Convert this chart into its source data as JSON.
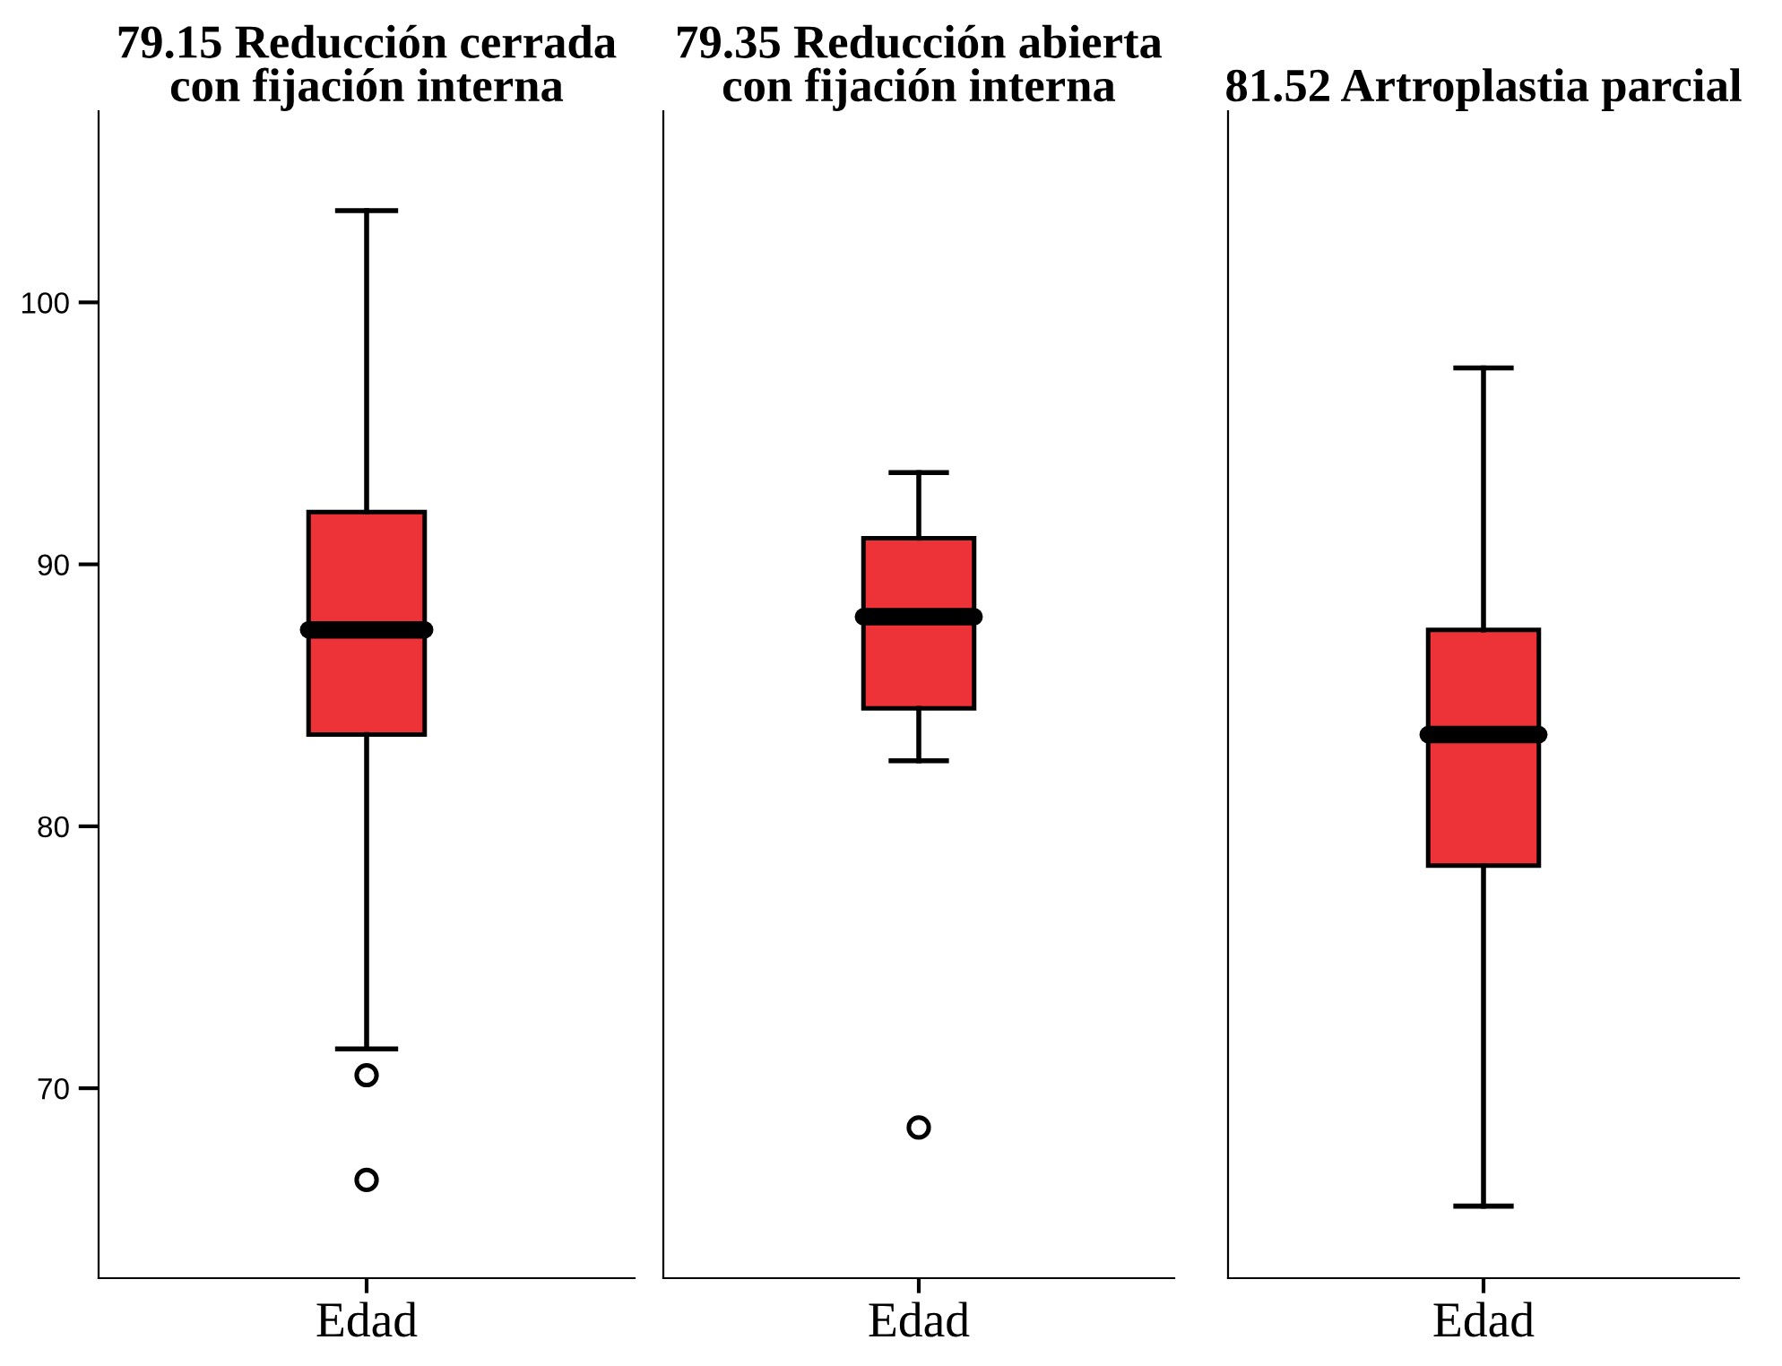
{
  "chart_data": [
    {
      "type": "box",
      "title": "79.15 Reducción cerrada\ncon fijación interna",
      "categories": [
        "Edad"
      ],
      "series": [
        {
          "color": "#ee3338",
          "boxes": [
            {
              "low": 71.5,
              "q1": 83.5,
              "median": 87.5,
              "q3": 92.0,
              "high": 103.5,
              "outliers": [
                70.5,
                66.5
              ]
            }
          ]
        }
      ],
      "ylim": [
        62.75,
        107.3
      ],
      "yticks": [
        70,
        80,
        90,
        100
      ],
      "grid": false
    },
    {
      "type": "box",
      "title": "79.35 Reducción abierta\ncon fijación interna",
      "categories": [
        "Edad"
      ],
      "series": [
        {
          "color": "#ee3338",
          "boxes": [
            {
              "low": 82.5,
              "q1": 84.5,
              "median": 88.0,
              "q3": 91.0,
              "high": 93.5,
              "outliers": [
                68.5
              ]
            }
          ]
        }
      ],
      "ylim": [
        62.75,
        107.3
      ],
      "tick_labels": "x",
      "grid": false
    },
    {
      "type": "box",
      "title": "81.52 Artroplastia parcial",
      "categories": [
        "Edad"
      ],
      "series": [
        {
          "color": "#ee3338",
          "boxes": [
            {
              "low": 65.5,
              "q1": 78.5,
              "median": 83.5,
              "q3": 87.5,
              "high": 97.5
            }
          ]
        }
      ],
      "ylim": [
        62.75,
        107.3
      ],
      "tick_labels": "x",
      "grid": false
    }
  ]
}
